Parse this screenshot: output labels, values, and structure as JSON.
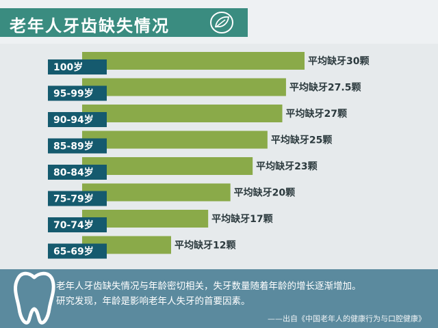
{
  "title": "老年人牙齿缺失情况",
  "chart_data": {
    "type": "bar",
    "orientation": "horizontal",
    "title": "老年人牙齿缺失情况",
    "categories": [
      "100岁",
      "95-99岁",
      "90-94岁",
      "85-89岁",
      "80-84岁",
      "75-79岁",
      "70-74岁",
      "65-69岁"
    ],
    "values": [
      30,
      27.5,
      27,
      25,
      23,
      20,
      17,
      12
    ],
    "value_labels": [
      "平均缺牙30颗",
      "平均缺牙27.5颗",
      "平均缺牙27颗",
      "平均缺牙25颗",
      "平均缺牙23颗",
      "平均缺牙20颗",
      "平均缺牙17颗",
      "平均缺牙12颗"
    ],
    "bar_color": "#8aaa49",
    "label_box_color": "#155a6e",
    "xlim": [
      0,
      30
    ]
  },
  "footer": {
    "description_line1": "老年人牙齿缺失情况与年龄密切相关，失牙数量随着年龄的增长逐渐增加。",
    "description_line2": "研究发现，年龄是影响老年人失牙的首要因素。",
    "source": "——出自《中国老年人的健康行为与口腔健康》"
  },
  "icons": [
    "leaf-icon",
    "tooth-icon"
  ],
  "colors": {
    "title_band": "#3a8c80",
    "bottom_band": "#5b8a9e"
  }
}
